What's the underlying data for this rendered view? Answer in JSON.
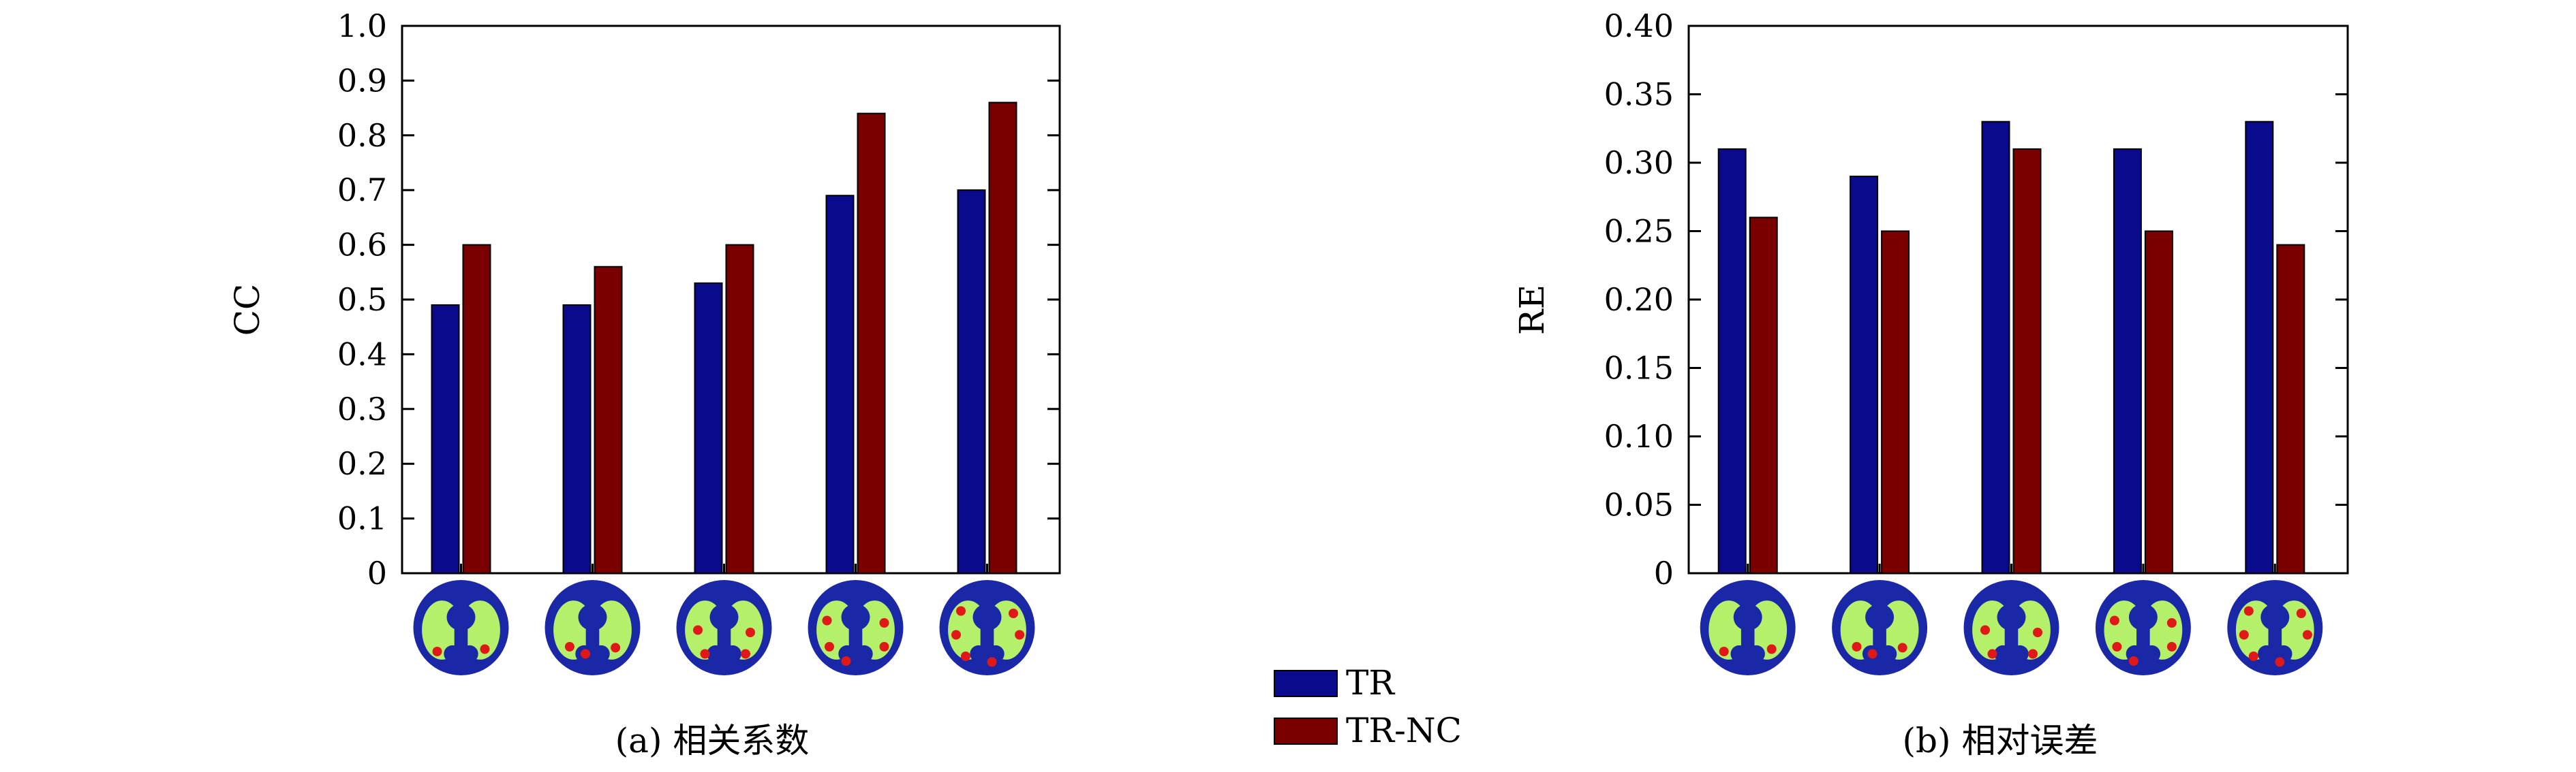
{
  "colors": {
    "tr": "#0a0a8c",
    "trnc": "#7a0000",
    "phantom_body": "#1a28a8",
    "phantom_lung": "#b4f06a",
    "phantom_lesion": "#e01818"
  },
  "legend": {
    "position": "bottom-center",
    "entries": [
      {
        "label": "TR",
        "color_key": "tr"
      },
      {
        "label": "TR-NC",
        "color_key": "trnc"
      }
    ]
  },
  "chart_data": [
    {
      "type": "bar",
      "caption": "(a) 相关系数",
      "ylabel": "CC",
      "xlabel": "",
      "ylim": [
        0,
        1.0
      ],
      "yticks": [
        0,
        0.1,
        0.2,
        0.3,
        0.4,
        0.5,
        0.6,
        0.7,
        0.8,
        0.9,
        1.0
      ],
      "ytick_labels": [
        "0",
        "0.1",
        "0.2",
        "0.3",
        "0.4",
        "0.5",
        "0.6",
        "0.7",
        "0.8",
        "0.9",
        "1.0"
      ],
      "grid": false,
      "category_icons": [
        "phantom-2-lesions",
        "phantom-3-lesions",
        "phantom-4-lesions",
        "phantom-5-lesions",
        "phantom-6-lesions"
      ],
      "series": [
        {
          "name": "TR",
          "values": [
            0.49,
            0.49,
            0.53,
            0.69,
            0.7
          ]
        },
        {
          "name": "TR-NC",
          "values": [
            0.6,
            0.56,
            0.6,
            0.84,
            0.86
          ]
        }
      ]
    },
    {
      "type": "bar",
      "caption": "(b) 相对误差",
      "ylabel": "RE",
      "xlabel": "",
      "ylim": [
        0,
        0.4
      ],
      "yticks": [
        0,
        0.05,
        0.1,
        0.15,
        0.2,
        0.25,
        0.3,
        0.35,
        0.4
      ],
      "ytick_labels": [
        "0",
        "0.05",
        "0.10",
        "0.15",
        "0.20",
        "0.25",
        "0.30",
        "0.35",
        "0.40"
      ],
      "grid": false,
      "category_icons": [
        "phantom-2-lesions",
        "phantom-3-lesions",
        "phantom-4-lesions",
        "phantom-5-lesions",
        "phantom-6-lesions"
      ],
      "series": [
        {
          "name": "TR",
          "values": [
            0.31,
            0.29,
            0.33,
            0.31,
            0.33
          ]
        },
        {
          "name": "TR-NC",
          "values": [
            0.26,
            0.25,
            0.31,
            0.25,
            0.24
          ]
        }
      ]
    }
  ]
}
